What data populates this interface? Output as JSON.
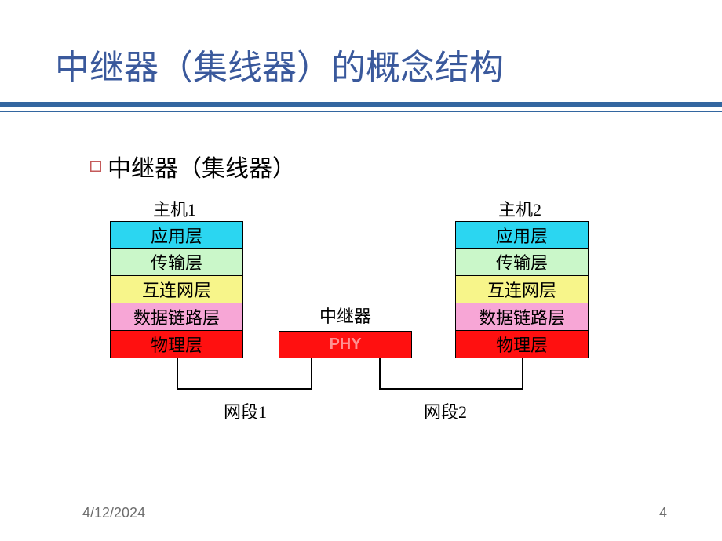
{
  "title": {
    "text": "中继器（集线器）的概念结构",
    "color": "#3a599c",
    "fontsize": 44
  },
  "underline": {
    "thick_color": "#3366a0",
    "thin_color": "#3366a0"
  },
  "bullet": {
    "icon_color": "#c45a5a",
    "text": "中继器（集线器）",
    "fontsize": 30
  },
  "diagram": {
    "host1_label": "主机1",
    "host2_label": "主机2",
    "repeater_label": "中继器",
    "repeater_box_text": "PHY",
    "segment1_label": "网段1",
    "segment2_label": "网段2",
    "layers": [
      {
        "name": "应用层",
        "bg": "#2bd6f1"
      },
      {
        "name": "传输层",
        "bg": "#caf7c9"
      },
      {
        "name": "互连网层",
        "bg": "#f7f58a"
      },
      {
        "name": "数据链路层",
        "bg": "#f7a6d6"
      },
      {
        "name": "物理层",
        "bg": "#ff1010"
      }
    ],
    "repeater_bg": "#ff1010",
    "repeater_text_color": "#ff9090",
    "label_fontsize": 22
  },
  "footer": {
    "date": "4/12/2024",
    "page": "4",
    "color": "#6e6e6e"
  }
}
